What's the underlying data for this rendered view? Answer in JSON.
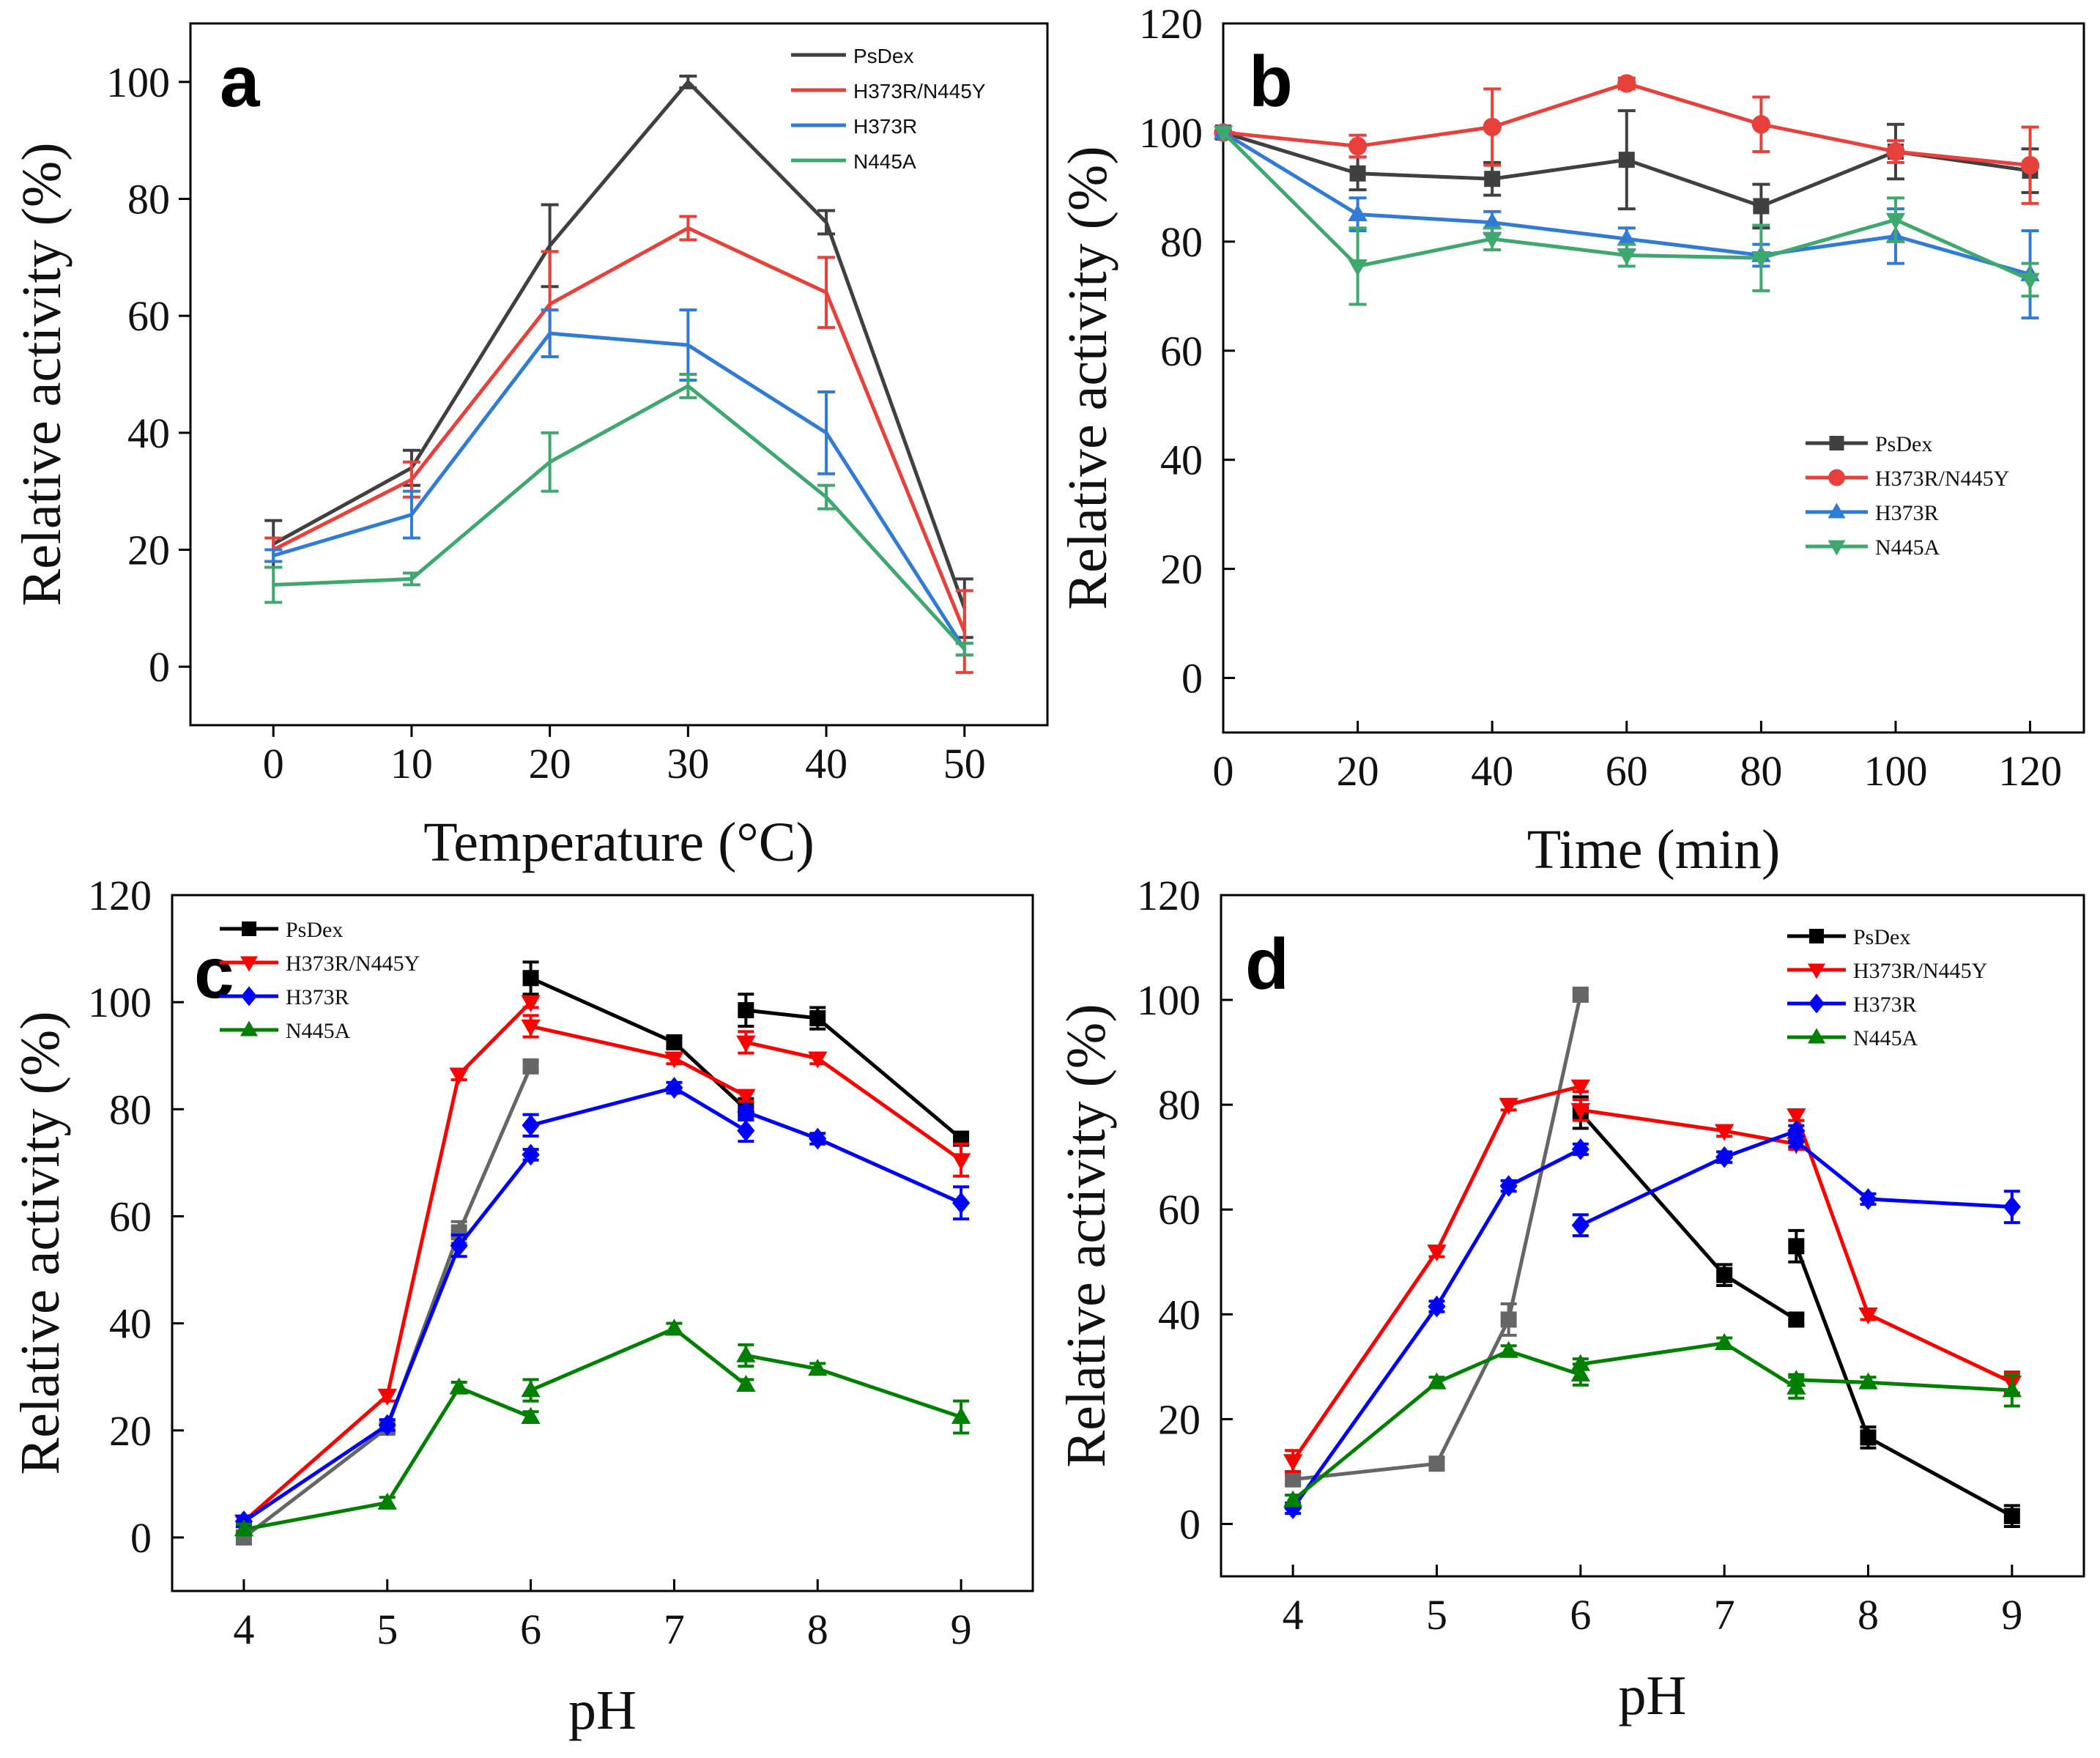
{
  "chart_data": [
    {
      "panel": "a",
      "type": "line",
      "xlabel": "Temperature (°C)",
      "ylabel": "Relative activity  (%)",
      "x": [
        0,
        10,
        20,
        30,
        40,
        50
      ],
      "xticks": [
        "0",
        "10",
        "20",
        "30",
        "40",
        "50"
      ],
      "yticks": [
        "0",
        "20",
        "40",
        "60",
        "80",
        "100"
      ],
      "xlim": [
        -6,
        56
      ],
      "ylim": [
        -10,
        110
      ],
      "legend_position": "top-right",
      "series": [
        {
          "name": "PsDex",
          "color": "#404040",
          "marker": "none",
          "values": [
            21,
            34,
            72,
            100,
            76,
            10
          ],
          "errors": [
            4,
            3,
            7,
            1,
            2,
            5
          ]
        },
        {
          "name": "H373R/N445Y",
          "color": "#e8413c",
          "marker": "none",
          "values": [
            20,
            32,
            62,
            75,
            64,
            6
          ],
          "errors": [
            2,
            3,
            9,
            2,
            6,
            7
          ]
        },
        {
          "name": "H373R",
          "color": "#2f7bd6",
          "marker": "none",
          "values": [
            19,
            26,
            57,
            55,
            40,
            3
          ],
          "errors": [
            1,
            4,
            4,
            6,
            7,
            1
          ]
        },
        {
          "name": "N445A",
          "color": "#3ea86e",
          "marker": "none",
          "values": [
            14,
            15,
            35,
            48,
            29,
            3
          ],
          "errors": [
            3,
            1,
            5,
            2,
            2,
            1
          ]
        }
      ]
    },
    {
      "panel": "b",
      "type": "line",
      "xlabel": "Time (min)",
      "ylabel": "Relative activity (%)",
      "x": [
        0,
        20,
        40,
        60,
        80,
        100,
        120
      ],
      "xticks": [
        "0",
        "20",
        "40",
        "60",
        "80",
        "100",
        "120"
      ],
      "yticks": [
        "0",
        "20",
        "40",
        "60",
        "80",
        "100",
        "120"
      ],
      "xlim": [
        0,
        128
      ],
      "ylim": [
        -10,
        120
      ],
      "legend_position": "right",
      "series": [
        {
          "name": "PsDex",
          "color": "#404040",
          "marker": "square",
          "values": [
            100,
            92.5,
            91.5,
            95,
            86.5,
            96.5,
            93
          ],
          "errors": [
            0,
            3,
            3,
            9,
            4,
            5,
            4
          ]
        },
        {
          "name": "H373R/N445Y",
          "color": "#e8413c",
          "marker": "circle",
          "values": [
            100,
            97.5,
            101,
            109,
            101.5,
            96.5,
            94
          ],
          "errors": [
            0,
            2,
            7,
            1,
            5,
            2,
            7
          ]
        },
        {
          "name": "H373R",
          "color": "#2f7bd6",
          "marker": "triangle-up",
          "values": [
            100,
            85,
            83.5,
            80.5,
            77.5,
            81,
            74
          ],
          "errors": [
            0,
            3,
            2,
            2,
            2,
            5,
            8
          ]
        },
        {
          "name": "N445A",
          "color": "#3ea86e",
          "marker": "triangle-down",
          "values": [
            100,
            75.5,
            80.5,
            77.5,
            77,
            84,
            73
          ],
          "errors": [
            0,
            7,
            2,
            2,
            6,
            4,
            3
          ]
        }
      ]
    },
    {
      "panel": "c",
      "type": "line",
      "xlabel": "pH",
      "ylabel": "Relative activity (%)",
      "xticks": [
        "4",
        "5",
        "6",
        "7",
        "8",
        "9"
      ],
      "tick_values": [
        4,
        5,
        6,
        7,
        8,
        9
      ],
      "yticks": [
        "0",
        "20",
        "40",
        "60",
        "80",
        "100",
        "120"
      ],
      "xlim": [
        3.5,
        9.5
      ],
      "ylim": [
        -10,
        120
      ],
      "legend_position": "top-left",
      "series": [
        {
          "name": "PsDex",
          "color": "#000000",
          "marker": "square",
          "segments": [
            {
              "color": "#666666",
              "x": [
                4,
                5,
                5.5,
                6
              ],
              "values": [
                0,
                20.5,
                57,
                88
              ]
            },
            {
              "color": "#000000",
              "x": [
                6,
                7,
                7.5
              ],
              "values": [
                104.5,
                92.5,
                80
              ]
            },
            {
              "color": "#000000",
              "x": [
                7.5,
                8,
                9
              ],
              "values": [
                98.5,
                97,
                74.5
              ]
            }
          ],
          "errors": [
            1,
            1,
            2,
            1,
            3,
            1,
            2,
            3,
            2,
            1
          ]
        },
        {
          "name": "H373R/N445Y",
          "color": "#ff0000",
          "marker": "triangle-down",
          "segments": [
            {
              "color": "#ff0000",
              "x": [
                4,
                5,
                5.5,
                6
              ],
              "values": [
                3,
                26.5,
                86.5,
                100
              ]
            },
            {
              "color": "#ff0000",
              "x": [
                6,
                7,
                7.5
              ],
              "values": [
                95.5,
                89.5,
                82.5
              ]
            },
            {
              "color": "#ff0000",
              "x": [
                7.5,
                8,
                9
              ],
              "values": [
                92.5,
                89.5,
                70.5
              ]
            }
          ],
          "errors": [
            1,
            1,
            1,
            1,
            2,
            1,
            1,
            2,
            1,
            3
          ]
        },
        {
          "name": "H373R",
          "color": "#0000ff",
          "marker": "diamond",
          "segments": [
            {
              "color": "#0000ff",
              "x": [
                4,
                5,
                5.5,
                6
              ],
              "values": [
                3,
                21,
                54.5,
                71.5
              ]
            },
            {
              "color": "#0000ff",
              "x": [
                6,
                7,
                7.5
              ],
              "values": [
                77,
                84,
                76
              ]
            },
            {
              "color": "#0000ff",
              "x": [
                7.5,
                8,
                9
              ],
              "values": [
                79.5,
                74.5,
                62.5
              ]
            }
          ],
          "errors": [
            1,
            1,
            2,
            1,
            2,
            1,
            2,
            1,
            1,
            3
          ]
        },
        {
          "name": "N445A",
          "color": "#008000",
          "marker": "triangle-up",
          "segments": [
            {
              "color": "#008000",
              "x": [
                4,
                5,
                5.5,
                6
              ],
              "values": [
                1.5,
                6.5,
                28,
                22.5
              ]
            },
            {
              "color": "#008000",
              "x": [
                6,
                7,
                7.5
              ],
              "values": [
                27.5,
                39,
                28.5
              ]
            },
            {
              "color": "#008000",
              "x": [
                7.5,
                8,
                9
              ],
              "values": [
                34,
                31.5,
                22.5
              ]
            }
          ],
          "errors": [
            1,
            1,
            1,
            1,
            2,
            1,
            1,
            2,
            1,
            3
          ]
        }
      ]
    },
    {
      "panel": "d",
      "type": "line",
      "xlabel": "pH",
      "ylabel": "Relative activity (%)",
      "xticks": [
        "4",
        "5",
        "6",
        "7",
        "8",
        "9"
      ],
      "tick_values": [
        4,
        5,
        6,
        7,
        8,
        9
      ],
      "yticks": [
        "0",
        "20",
        "40",
        "60",
        "80",
        "100",
        "120"
      ],
      "xlim": [
        3.5,
        9.5
      ],
      "ylim": [
        -10,
        120
      ],
      "legend_position": "top-right",
      "series": [
        {
          "name": "PsDex",
          "color": "#000000",
          "marker": "square",
          "segments": [
            {
              "color": "#666666",
              "x": [
                4,
                5,
                5.5,
                6
              ],
              "values": [
                8.5,
                11.5,
                39,
                101
              ]
            },
            {
              "color": "#000000",
              "x": [
                6,
                7,
                7.5
              ],
              "values": [
                78.5,
                47.5,
                39
              ]
            },
            {
              "color": "#000000",
              "x": [
                7.5,
                8,
                9
              ],
              "values": [
                53,
                16.5,
                1.5
              ]
            }
          ],
          "errors": [
            1,
            1,
            3,
            1,
            3,
            2,
            1,
            3,
            2,
            2
          ]
        },
        {
          "name": "H373R/N445Y",
          "color": "#ff0000",
          "marker": "triangle-down",
          "segments": [
            {
              "color": "#ff0000",
              "x": [
                4,
                5,
                5.5,
                6
              ],
              "values": [
                12,
                52,
                80,
                83.5
              ]
            },
            {
              "color": "#ff0000",
              "x": [
                6,
                7,
                7.5
              ],
              "values": [
                79,
                75,
                72.5
              ]
            },
            {
              "color": "#ff0000",
              "x": [
                7.5,
                8,
                9
              ],
              "values": [
                78,
                40,
                27
              ]
            }
          ],
          "errors": [
            2,
            1,
            1,
            1,
            2,
            1,
            1,
            1,
            1,
            2
          ]
        },
        {
          "name": "H373R",
          "color": "#0000ff",
          "marker": "diamond",
          "segments": [
            {
              "color": "#0000ff",
              "x": [
                4,
                5,
                5.5,
                6
              ],
              "values": [
                3,
                41.5,
                64.5,
                71.5
              ]
            },
            {
              "color": "#0000ff",
              "x": [
                6,
                7,
                7.5
              ],
              "values": [
                57,
                70,
                75
              ]
            },
            {
              "color": "#0000ff",
              "x": [
                7.5,
                8,
                9
              ],
              "values": [
                73,
                62,
                60.5
              ]
            }
          ],
          "errors": [
            1,
            1,
            1,
            1,
            2,
            1,
            1,
            1,
            1,
            3
          ]
        },
        {
          "name": "N445A",
          "color": "#008000",
          "marker": "triangle-up",
          "segments": [
            {
              "color": "#008000",
              "x": [
                4,
                5,
                5.5,
                6
              ],
              "values": [
                4.5,
                27,
                33,
                28.5
              ]
            },
            {
              "color": "#008000",
              "x": [
                6,
                7,
                7.5
              ],
              "values": [
                30.5,
                34.5,
                26
              ]
            },
            {
              "color": "#008000",
              "x": [
                7.5,
                8,
                9
              ],
              "values": [
                27.5,
                27,
                25.5
              ]
            }
          ],
          "errors": [
            1,
            1,
            1,
            2,
            1,
            1,
            2,
            1,
            1,
            3
          ]
        }
      ]
    }
  ]
}
